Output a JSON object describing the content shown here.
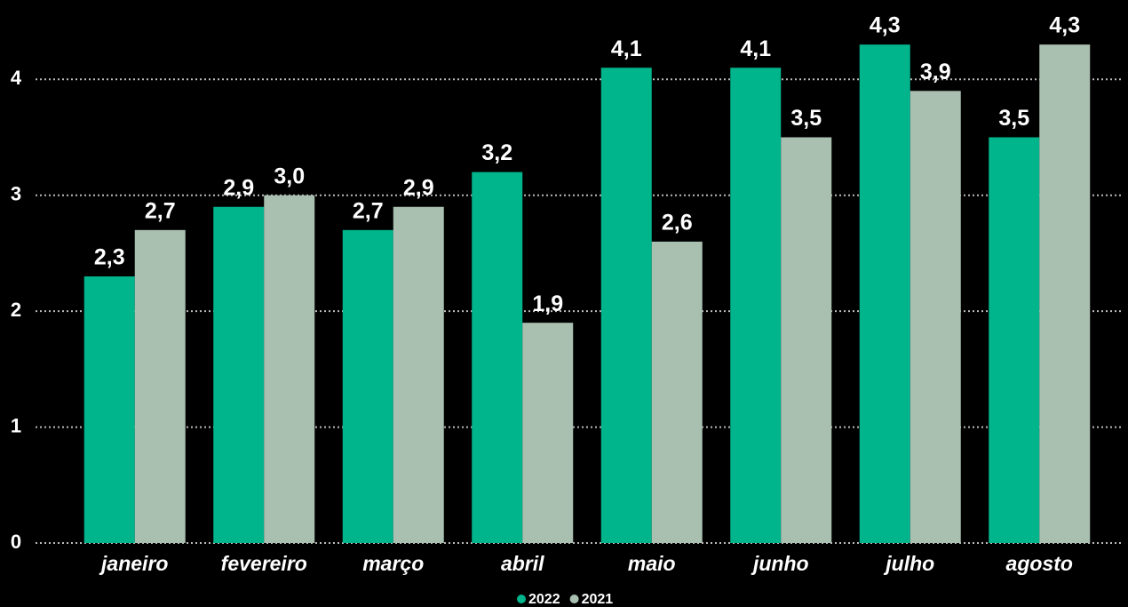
{
  "chart_data": {
    "type": "bar",
    "categories": [
      "janeiro",
      "fevereiro",
      "março",
      "abril",
      "maio",
      "junho",
      "julho",
      "agosto"
    ],
    "series": [
      {
        "name": "2022",
        "color": "#00b48c",
        "values": [
          2.3,
          2.9,
          2.7,
          3.2,
          4.1,
          4.1,
          4.3,
          3.5
        ],
        "value_labels": [
          "2,3",
          "2,9",
          "2,7",
          "3,2",
          "4,1",
          "4,1",
          "4,3",
          "3,5"
        ]
      },
      {
        "name": "2021",
        "color": "#a9bfb0",
        "values": [
          2.7,
          3.0,
          2.9,
          1.9,
          2.6,
          3.5,
          3.9,
          4.3
        ],
        "value_labels": [
          "2,7",
          "3,0",
          "2,9",
          "1,9",
          "2,6",
          "3,5",
          "3,9",
          "4,3"
        ]
      }
    ],
    "ylim": [
      0,
      4.6
    ],
    "yticks": [
      0,
      1,
      2,
      3,
      4
    ],
    "grid": true,
    "legend": "bottom"
  }
}
